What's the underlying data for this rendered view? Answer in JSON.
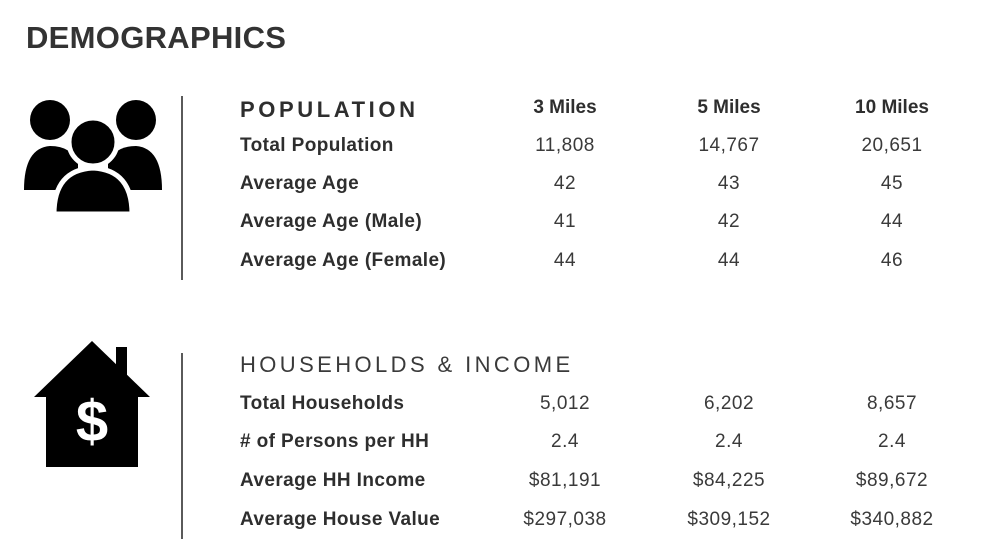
{
  "page": {
    "title": "DEMOGRAPHICS"
  },
  "population": {
    "heading": "POPULATION",
    "columns": [
      "3 Miles",
      "5 Miles",
      "10 Miles"
    ],
    "icon": "people-group-icon",
    "rows": [
      {
        "label": "Total Population",
        "values": [
          "11,808",
          "14,767",
          "20,651"
        ]
      },
      {
        "label": "Average Age",
        "values": [
          "42",
          "43",
          "45"
        ]
      },
      {
        "label": "Average Age (Male)",
        "values": [
          "41",
          "42",
          "44"
        ]
      },
      {
        "label": "Average Age (Female)",
        "values": [
          "44",
          "44",
          "46"
        ]
      }
    ]
  },
  "households": {
    "heading": "HOUSEHOLDS & INCOME",
    "icon": "house-dollar-icon",
    "icon_glyph": "$",
    "rows": [
      {
        "label": "Total Households",
        "values": [
          "5,012",
          "6,202",
          "8,657"
        ]
      },
      {
        "label": "# of Persons per HH",
        "values": [
          "2.4",
          "2.4",
          "2.4"
        ]
      },
      {
        "label": "Average HH Income",
        "values": [
          "$81,191",
          "$84,225",
          "$89,672"
        ]
      },
      {
        "label": "Average House Value",
        "values": [
          "$297,038",
          "$309,152",
          "$340,882"
        ]
      }
    ]
  },
  "colors": {
    "text": "#2e2e2e",
    "icon": "#000000",
    "divider": "#5a5a5a"
  }
}
